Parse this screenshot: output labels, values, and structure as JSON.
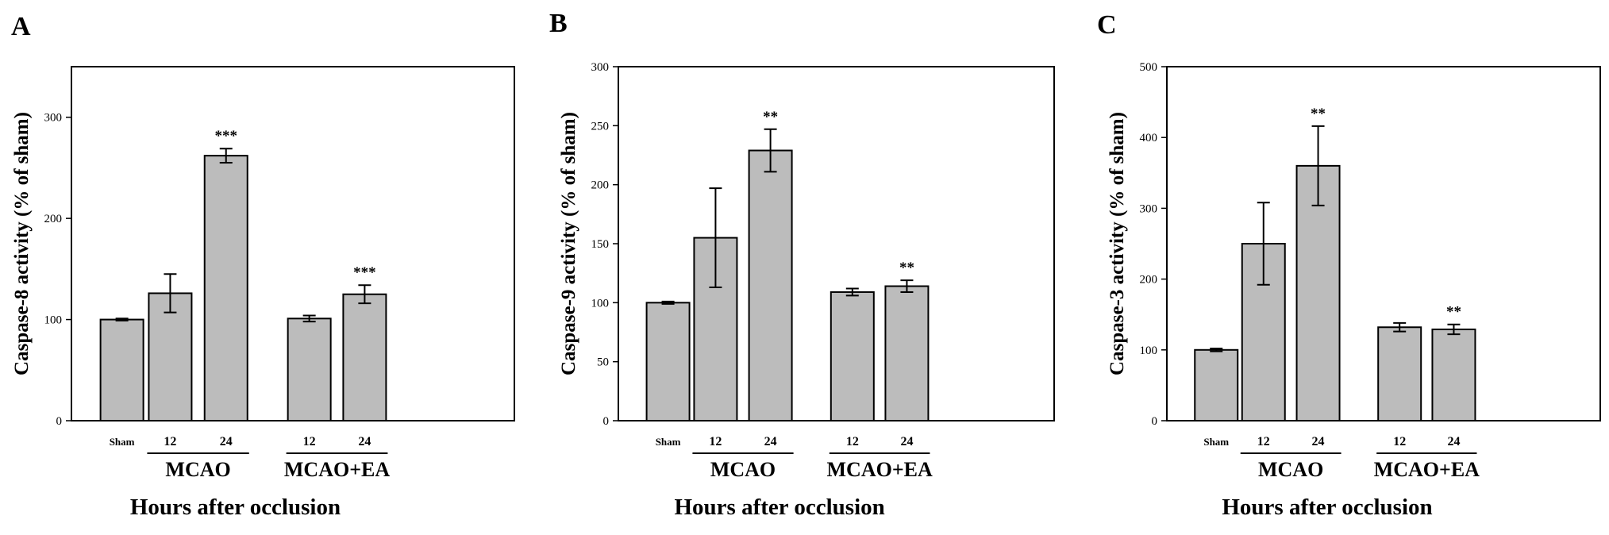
{
  "chart_data": [
    {
      "type": "bar",
      "panel_label": "A",
      "categories": [
        "Sham",
        "12",
        "24",
        "12",
        "24"
      ],
      "groups": [
        {
          "label": "MCAO",
          "categories": [
            "12",
            "24"
          ]
        },
        {
          "label": "MCAO+EA",
          "categories": [
            "12",
            "24"
          ]
        }
      ],
      "values": [
        100,
        126,
        262,
        101,
        125
      ],
      "errors": [
        1,
        19,
        7,
        3,
        9
      ],
      "significance": [
        "",
        "",
        "***",
        "",
        "***"
      ],
      "ylabel": "Caspase-8 activity (% of sham)",
      "xlabel": "Hours after occlusion",
      "ylim": [
        0,
        350
      ],
      "yticks": [
        0,
        100,
        200,
        300
      ],
      "grid": false,
      "bar_color": "#bcbcbc"
    },
    {
      "type": "bar",
      "panel_label": "B",
      "categories": [
        "Sham",
        "12",
        "24",
        "12",
        "24"
      ],
      "groups": [
        {
          "label": "MCAO",
          "categories": [
            "12",
            "24"
          ]
        },
        {
          "label": "MCAO+EA",
          "categories": [
            "12",
            "24"
          ]
        }
      ],
      "values": [
        100,
        155,
        229,
        109,
        114
      ],
      "errors": [
        1,
        42,
        18,
        3,
        5
      ],
      "significance": [
        "",
        "",
        "**",
        "",
        "**"
      ],
      "ylabel": "Caspase-9 activity (% of sham)",
      "xlabel": "Hours after occlusion",
      "ylim": [
        0,
        300
      ],
      "yticks": [
        0,
        50,
        100,
        150,
        200,
        250,
        300
      ],
      "grid": false,
      "bar_color": "#bcbcbc"
    },
    {
      "type": "bar",
      "panel_label": "C",
      "categories": [
        "Sham",
        "12",
        "24",
        "12",
        "24"
      ],
      "groups": [
        {
          "label": "MCAO",
          "categories": [
            "12",
            "24"
          ]
        },
        {
          "label": "MCAO+EA",
          "categories": [
            "12",
            "24"
          ]
        }
      ],
      "values": [
        100,
        250,
        360,
        132,
        129
      ],
      "errors": [
        2,
        58,
        56,
        6,
        7
      ],
      "significance": [
        "",
        "",
        "**",
        "",
        "**"
      ],
      "ylabel": "Caspase-3 activity (% of sham)",
      "xlabel": "Hours after occlusion",
      "ylim": [
        0,
        500
      ],
      "yticks": [
        0,
        100,
        200,
        300,
        400,
        500
      ],
      "grid": false,
      "bar_color": "#bcbcbc"
    }
  ]
}
